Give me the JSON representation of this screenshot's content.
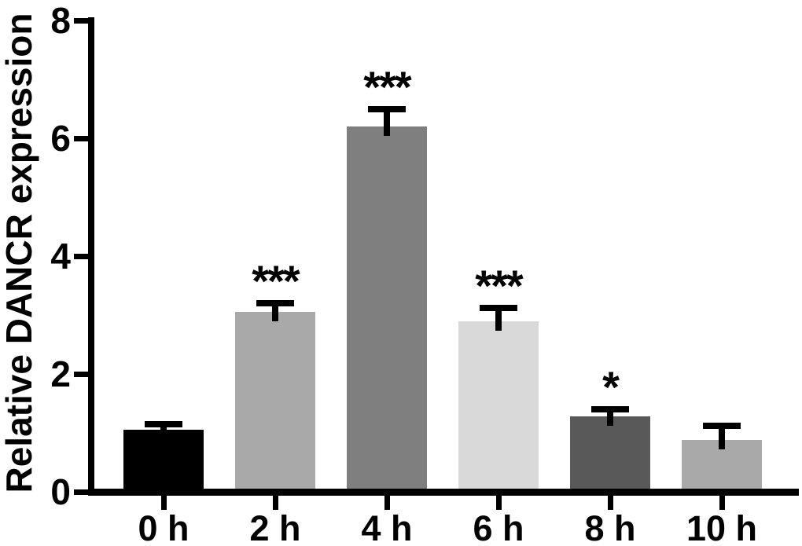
{
  "figure": {
    "background": "#ffffff",
    "axis_color": "#000000",
    "text_color": "#000000"
  },
  "chart_data": {
    "type": "bar",
    "title": "",
    "ylabel": "Relative DANCR expression",
    "xlabel": "",
    "categories": [
      "0 h",
      "2 h",
      "4 h",
      "6 h",
      "8 h",
      "10 h"
    ],
    "series": [
      {
        "name": "Relative DANCR expression",
        "values": [
          1.05,
          3.05,
          6.2,
          2.9,
          1.28,
          0.88
        ],
        "errors_upper": [
          0.1,
          0.15,
          0.3,
          0.22,
          0.12,
          0.24
        ]
      }
    ],
    "significance": [
      "",
      "***",
      "***",
      "***",
      "*",
      ""
    ],
    "bar_colors": [
      "#000000",
      "#a9a9a9",
      "#7f7f7f",
      "#d9d9d9",
      "#595959",
      "#a9a9a9"
    ],
    "ylim": [
      0,
      8
    ],
    "yticks": [
      0,
      2,
      4,
      6,
      8
    ],
    "grid": false,
    "legend_position": "none",
    "error_bar_style": "upper-cap-with-stem"
  }
}
